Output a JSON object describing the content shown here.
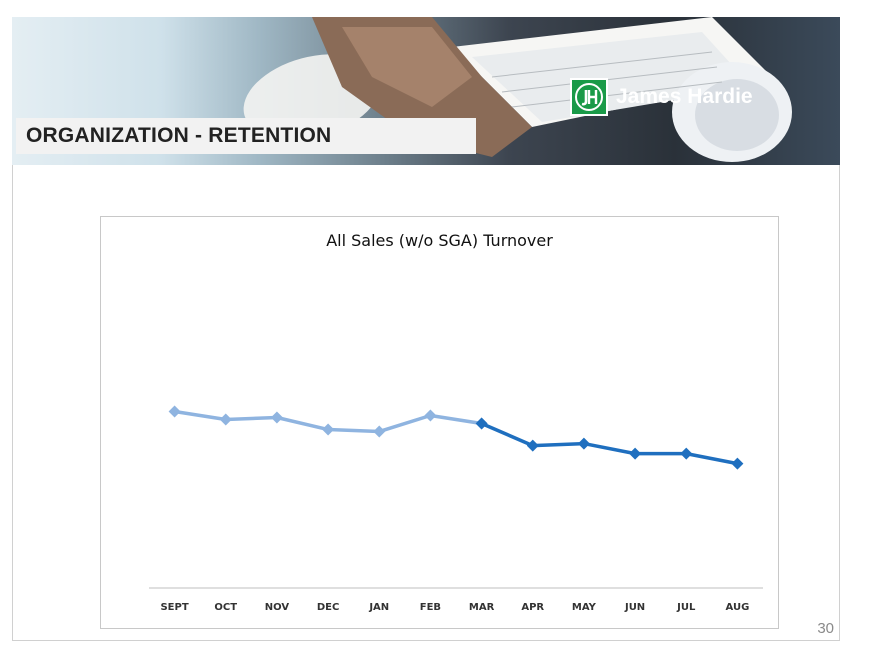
{
  "header": {
    "title": "ORGANIZATION - RETENTION",
    "logo_text": "James Hardie",
    "logo_mark": "JH",
    "logo_color": "#1a9a48"
  },
  "chart_data": {
    "type": "line",
    "title": "All Sales (w/o SGA) Turnover",
    "xlabel": "",
    "ylabel": "",
    "categories": [
      "SEPT",
      "OCT",
      "NOV",
      "DEC",
      "JAN",
      "FEB",
      "MAR",
      "APR",
      "MAY",
      "JUN",
      "JUL",
      "AUG"
    ],
    "series": [
      {
        "values": [
          88,
          84,
          85,
          79,
          78,
          86,
          82,
          null,
          null,
          null,
          null,
          null
        ],
        "color": "#8fb4e0"
      },
      {
        "values": [
          null,
          null,
          null,
          null,
          null,
          null,
          82,
          71,
          72,
          67,
          67,
          62
        ],
        "color": "#1f6fbf"
      }
    ],
    "ylim": [
      0,
      170
    ],
    "grid": false,
    "legend": "none",
    "marker": "diamond"
  },
  "footer": {
    "page_number": "30"
  }
}
